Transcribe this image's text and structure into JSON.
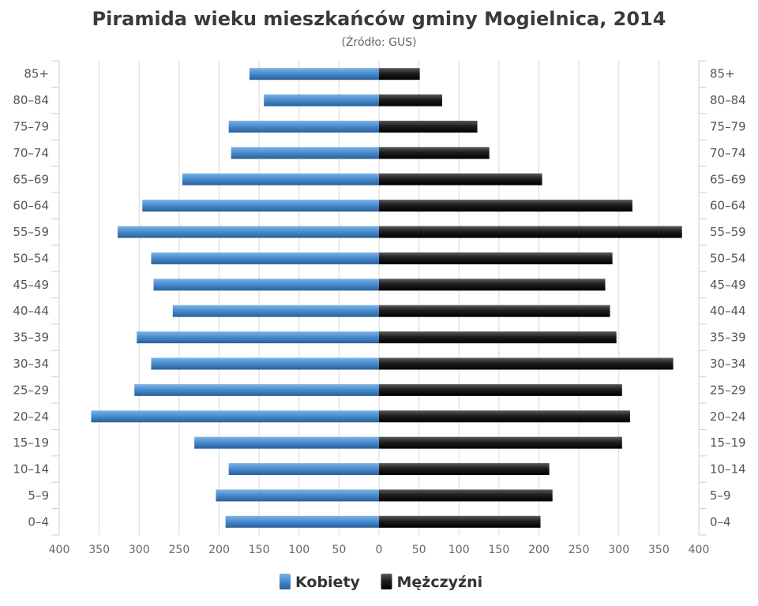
{
  "chart_data": {
    "type": "bar",
    "orientation": "horizontal",
    "layout": "population-pyramid",
    "title": "Piramida wieku mieszkańców gminy Mogielnica, 2014",
    "subtitle": "(Źródło: GUS)",
    "categories": [
      "85+",
      "80–84",
      "75–79",
      "70–74",
      "65–69",
      "60–64",
      "55–59",
      "50–54",
      "45–49",
      "40–44",
      "35–39",
      "30–34",
      "25–29",
      "20–24",
      "15–19",
      "10–14",
      "5–9",
      "0–4"
    ],
    "x_ticks": [
      "400",
      "350",
      "300",
      "250",
      "200",
      "150",
      "100",
      "50",
      "0",
      "50",
      "100",
      "150",
      "200",
      "250",
      "300",
      "350",
      "400"
    ],
    "xlim": [
      -400,
      400
    ],
    "grid": true,
    "legend_position": "bottom",
    "series": [
      {
        "name": "Kobiety",
        "color": "#4a8ed0",
        "side": "left",
        "values": [
          162,
          144,
          188,
          185,
          246,
          296,
          327,
          285,
          282,
          258,
          303,
          285,
          306,
          360,
          231,
          188,
          204,
          192
        ]
      },
      {
        "name": "Mężczyźni",
        "color": "#1a1a1a",
        "side": "right",
        "values": [
          51,
          79,
          123,
          138,
          204,
          317,
          379,
          292,
          283,
          289,
          297,
          368,
          304,
          314,
          304,
          213,
          217,
          202
        ]
      }
    ]
  }
}
